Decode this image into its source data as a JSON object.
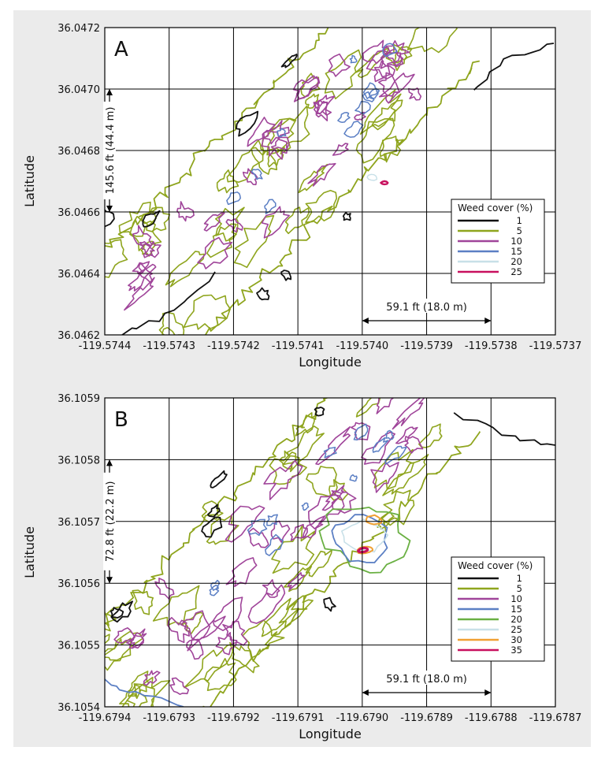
{
  "colors": {
    "background": "#ebebeb",
    "plot": "#ffffff",
    "grid": "#000000",
    "c1": "#111111",
    "c5": "#8fa51e",
    "c10": "#a0459a",
    "c15": "#5b7fc4",
    "c20_A": "#c8e0e8",
    "c20_B": "#6ab043",
    "c25_A": "#c8105e",
    "c25_B": "#c8e0e8",
    "c30": "#f0a033",
    "c35": "#c8105e"
  },
  "chart_data": [
    {
      "type": "contour",
      "panel_label": "A",
      "xlabel": "Longitude",
      "ylabel": "Latitude",
      "xlim": [
        -119.5744,
        -119.5737
      ],
      "ylim": [
        36.0462,
        36.0472
      ],
      "x_ticks": [
        "-119.5744",
        "-119.5743",
        "-119.5742",
        "-119.5741",
        "-119.5740",
        "-119.5739",
        "-119.5738",
        "-119.5737"
      ],
      "y_ticks": [
        "36.0462",
        "36.0464",
        "36.0466",
        "36.0468",
        "36.0470",
        "36.0472"
      ],
      "grid": true,
      "legend": {
        "title": "Weed cover (%)",
        "position": "right",
        "levels": [
          {
            "label": "1",
            "color": "#111111"
          },
          {
            "label": "5",
            "color": "#8fa51e"
          },
          {
            "label": "10",
            "color": "#a0459a"
          },
          {
            "label": "15",
            "color": "#5b7fc4"
          },
          {
            "label": "20",
            "color": "#c8e0e8"
          },
          {
            "label": "25",
            "color": "#c8105e"
          }
        ]
      },
      "vertical_scale_label": "145.6 ft (44.4 m)",
      "horizontal_scale_label": "59.1 ft (18.0 m)"
    },
    {
      "type": "contour",
      "panel_label": "B",
      "xlabel": "Longitude",
      "ylabel": "Latitude",
      "xlim": [
        -119.6794,
        -119.6787
      ],
      "ylim": [
        36.1054,
        36.1059
      ],
      "x_ticks": [
        "-119.6794",
        "-119.6793",
        "-119.6792",
        "-119.6791",
        "-119.6790",
        "-119.6789",
        "-119.6788",
        "-119.6787"
      ],
      "y_ticks": [
        "36.1054",
        "36.1055",
        "36.1056",
        "36.1057",
        "36.1058",
        "36.1059"
      ],
      "grid": true,
      "legend": {
        "title": "Weed cover (%)",
        "position": "right",
        "levels": [
          {
            "label": "1",
            "color": "#111111"
          },
          {
            "label": "5",
            "color": "#8fa51e"
          },
          {
            "label": "10",
            "color": "#a0459a"
          },
          {
            "label": "15",
            "color": "#5b7fc4"
          },
          {
            "label": "20",
            "color": "#6ab043"
          },
          {
            "label": "25",
            "color": "#c8e0e8"
          },
          {
            "label": "30",
            "color": "#f0a033"
          },
          {
            "label": "35",
            "color": "#c8105e"
          }
        ]
      },
      "vertical_scale_label": "72.8 ft (22.2 m)",
      "horizontal_scale_label": "59.1 ft (18.0 m)"
    }
  ]
}
